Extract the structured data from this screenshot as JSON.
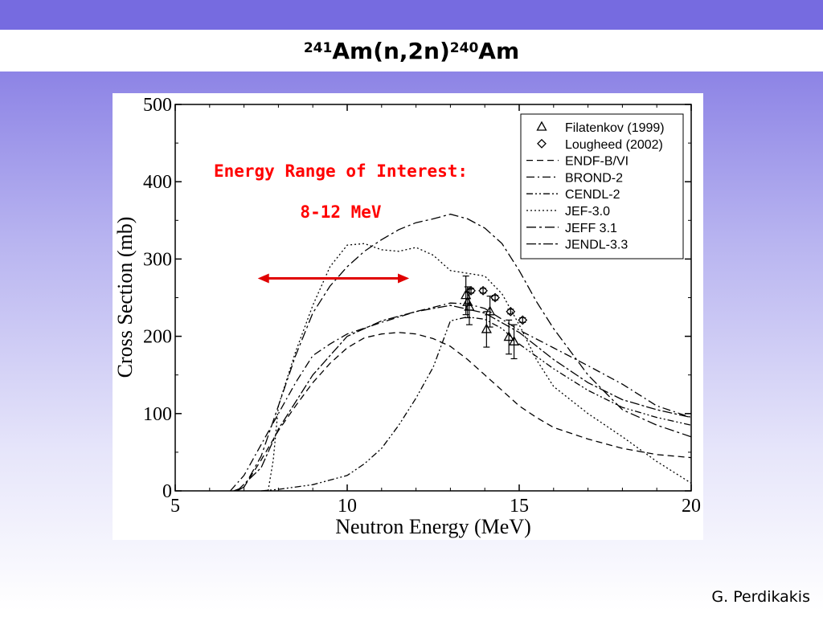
{
  "slide": {
    "title_sup1": "241",
    "title_part1": "Am(n,2n)",
    "title_sup2": "240",
    "title_part2": "Am",
    "credit": "G. Perdikakis"
  },
  "colors": {
    "band": "#766be0",
    "annotation": "#ff0000",
    "arrow": "#e00000"
  },
  "chart_data": {
    "type": "line",
    "xlabel": "Neutron Energy (MeV)",
    "ylabel": "Cross Section (mb)",
    "xlim": [
      5,
      20
    ],
    "ylim": [
      0,
      500
    ],
    "xticks": [
      "5",
      "10",
      "15",
      "20"
    ],
    "yticks": [
      "0",
      "100",
      "200",
      "300",
      "400",
      "500"
    ],
    "grid": false,
    "legend_position": "top-right",
    "annotation": {
      "line1": "Energy Range of Interest:",
      "line2": "8-12 MeV",
      "arrow_from": 7.4,
      "arrow_to": 11.8,
      "arrow_y": 275
    },
    "series": [
      {
        "name": "Filatenkov (1999)",
        "style": "triangle",
        "points": [
          {
            "x": 13.45,
            "y": 253,
            "err": 25
          },
          {
            "x": 13.5,
            "y": 244,
            "err": 20
          },
          {
            "x": 13.55,
            "y": 238,
            "err": 23
          },
          {
            "x": 14.05,
            "y": 209,
            "err": 23
          },
          {
            "x": 14.15,
            "y": 232,
            "err": 20
          },
          {
            "x": 14.7,
            "y": 199,
            "err": 22
          },
          {
            "x": 14.85,
            "y": 193,
            "err": 22
          }
        ]
      },
      {
        "name": "Lougheed (2002)",
        "style": "diamond",
        "points": [
          {
            "x": 13.6,
            "y": 259,
            "err": 3
          },
          {
            "x": 13.95,
            "y": 259,
            "err": 3
          },
          {
            "x": 14.3,
            "y": 250,
            "err": 3
          },
          {
            "x": 14.75,
            "y": 232,
            "err": 3
          },
          {
            "x": 15.1,
            "y": 221,
            "err": 3
          }
        ]
      },
      {
        "name": "ENDF-B/VI",
        "style": "dash",
        "dash": "8,5",
        "points": [
          [
            6.7,
            0
          ],
          [
            7,
            5
          ],
          [
            7.5,
            40
          ],
          [
            8,
            78
          ],
          [
            8.5,
            110
          ],
          [
            9,
            140
          ],
          [
            9.5,
            165
          ],
          [
            10,
            185
          ],
          [
            10.5,
            198
          ],
          [
            11,
            203
          ],
          [
            11.5,
            205
          ],
          [
            12,
            203
          ],
          [
            12.5,
            197
          ],
          [
            13,
            187
          ],
          [
            13.5,
            170
          ],
          [
            14,
            150
          ],
          [
            14.5,
            130
          ],
          [
            15,
            110
          ],
          [
            15.5,
            95
          ],
          [
            16,
            82
          ],
          [
            17,
            67
          ],
          [
            18,
            55
          ],
          [
            19,
            47
          ],
          [
            20,
            43
          ]
        ]
      },
      {
        "name": "BROND-2",
        "style": "dashdot",
        "dash": "10,4,2,4",
        "points": [
          [
            6.6,
            0
          ],
          [
            7,
            20
          ],
          [
            7.5,
            60
          ],
          [
            8,
            100
          ],
          [
            8.5,
            140
          ],
          [
            9,
            175
          ],
          [
            9.5,
            190
          ],
          [
            10,
            203
          ],
          [
            11,
            218
          ],
          [
            12,
            232
          ],
          [
            13,
            243
          ],
          [
            13.5,
            242
          ],
          [
            14,
            236
          ],
          [
            14.5,
            222
          ],
          [
            15,
            208
          ],
          [
            16,
            185
          ],
          [
            17,
            162
          ],
          [
            18,
            138
          ],
          [
            19,
            110
          ],
          [
            20,
            95
          ]
        ]
      },
      {
        "name": "CENDL-2",
        "style": "dashdotdot",
        "dash": "8,3,2,3,2,3",
        "points": [
          [
            7.5,
            0
          ],
          [
            8,
            2
          ],
          [
            9,
            8
          ],
          [
            10,
            20
          ],
          [
            10.5,
            35
          ],
          [
            11,
            55
          ],
          [
            11.5,
            85
          ],
          [
            12,
            120
          ],
          [
            12.5,
            160
          ],
          [
            13,
            220
          ],
          [
            13.2,
            222
          ],
          [
            13.5,
            225
          ],
          [
            14,
            222
          ],
          [
            14.5,
            210
          ],
          [
            15,
            190
          ],
          [
            16,
            158
          ],
          [
            17,
            130
          ],
          [
            18,
            108
          ],
          [
            19,
            95
          ],
          [
            20,
            85
          ]
        ]
      },
      {
        "name": "JEF-3.0",
        "style": "dot",
        "dash": "2,3",
        "points": [
          [
            7.7,
            0
          ],
          [
            7.85,
            40
          ],
          [
            8,
            110
          ],
          [
            8.5,
            180
          ],
          [
            9,
            240
          ],
          [
            9.5,
            290
          ],
          [
            10,
            318
          ],
          [
            10.5,
            320
          ],
          [
            11,
            312
          ],
          [
            11.5,
            310
          ],
          [
            12,
            315
          ],
          [
            12.5,
            305
          ],
          [
            13,
            285
          ],
          [
            14,
            278
          ],
          [
            14.5,
            255
          ],
          [
            15,
            215
          ],
          [
            15.5,
            170
          ],
          [
            16,
            135
          ],
          [
            17,
            100
          ],
          [
            18,
            70
          ],
          [
            19,
            38
          ],
          [
            20,
            10
          ]
        ]
      },
      {
        "name": "JEFF 3.1",
        "style": "longdashdot",
        "dash": "12,4,3,4",
        "points": [
          [
            6.8,
            0
          ],
          [
            7,
            5
          ],
          [
            7.5,
            45
          ],
          [
            8,
            110
          ],
          [
            8.5,
            175
          ],
          [
            9,
            230
          ],
          [
            9.5,
            265
          ],
          [
            10,
            290
          ],
          [
            10.5,
            310
          ],
          [
            11,
            325
          ],
          [
            11.5,
            338
          ],
          [
            12,
            347
          ],
          [
            12.5,
            352
          ],
          [
            13,
            358
          ],
          [
            13.5,
            352
          ],
          [
            14,
            340
          ],
          [
            14.5,
            320
          ],
          [
            15,
            285
          ],
          [
            15.5,
            245
          ],
          [
            16,
            210
          ],
          [
            17,
            150
          ],
          [
            18,
            105
          ],
          [
            19,
            85
          ],
          [
            20,
            70
          ]
        ]
      },
      {
        "name": "JENDL-3.3",
        "style": "dashdotlong",
        "dash": "12,3,3,3",
        "points": [
          [
            6.8,
            0
          ],
          [
            7.5,
            30
          ],
          [
            8,
            80
          ],
          [
            9,
            150
          ],
          [
            10,
            200
          ],
          [
            11,
            220
          ],
          [
            12,
            232
          ],
          [
            13,
            240
          ],
          [
            14,
            230
          ],
          [
            15,
            205
          ],
          [
            16,
            170
          ],
          [
            17,
            140
          ],
          [
            18,
            118
          ],
          [
            19,
            105
          ],
          [
            20,
            95
          ]
        ]
      }
    ]
  }
}
